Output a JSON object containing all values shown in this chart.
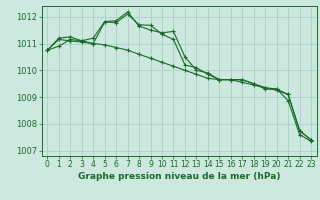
{
  "background_color": "#cce8df",
  "grid_color": "#aacfc6",
  "line_color": "#1a6b2a",
  "title": "Graphe pression niveau de la mer (hPa)",
  "xlim": [
    -0.5,
    23.5
  ],
  "ylim": [
    1006.8,
    1012.4
  ],
  "yticks": [
    1007,
    1008,
    1009,
    1010,
    1011,
    1012
  ],
  "xticks": [
    0,
    1,
    2,
    3,
    4,
    5,
    6,
    7,
    8,
    9,
    10,
    11,
    12,
    13,
    14,
    15,
    16,
    17,
    18,
    19,
    20,
    21,
    22,
    23
  ],
  "series": [
    [
      1010.75,
      1010.9,
      1011.15,
      1011.1,
      1011.0,
      1011.8,
      1011.78,
      1012.1,
      1011.7,
      1011.68,
      1011.35,
      1011.15,
      1010.2,
      1010.1,
      1009.85,
      1009.65,
      1009.65,
      1009.65,
      1009.5,
      1009.3,
      1009.3,
      1009.1,
      1007.75,
      1007.4
    ],
    [
      1010.75,
      1011.2,
      1011.25,
      1011.1,
      1011.2,
      1011.82,
      1011.85,
      1012.18,
      1011.65,
      1011.5,
      1011.4,
      1011.45,
      1010.5,
      1010.0,
      1009.9,
      1009.65,
      1009.65,
      1009.65,
      1009.5,
      1009.35,
      1009.3,
      1008.87,
      1007.6,
      1007.35
    ],
    [
      1010.75,
      1011.15,
      1011.1,
      1011.05,
      1011.0,
      1010.95,
      1010.85,
      1010.75,
      1010.6,
      1010.45,
      1010.3,
      1010.15,
      1010.0,
      1009.85,
      1009.7,
      1009.65,
      1009.65,
      1009.55,
      1009.45,
      1009.35,
      1009.25,
      1009.1,
      1007.75,
      1007.4
    ]
  ],
  "xlabel_fontsize": 6.5,
  "ylabel_fontsize": 6.0,
  "tick_fontsize": 5.5,
  "title_fontsize": 6.5
}
